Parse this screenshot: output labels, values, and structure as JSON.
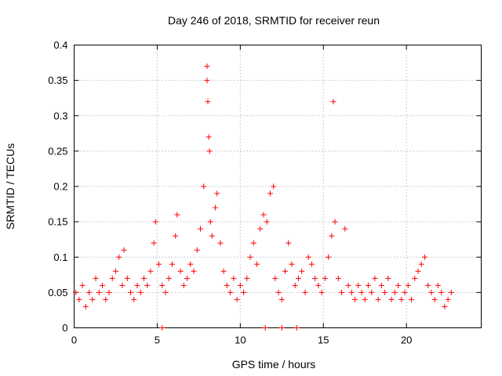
{
  "chart_data": {
    "type": "scatter",
    "title": "Day 246 of 2018, SRMTID for receiver reun",
    "xlabel": "GPS time / hours",
    "ylabel": "SRMTID / TECUs",
    "xlim": [
      0,
      24.5
    ],
    "ylim": [
      0,
      0.4
    ],
    "xticks": [
      0,
      5,
      10,
      15,
      20
    ],
    "xtick_labels": [
      "0",
      "5",
      "10",
      "15",
      "20"
    ],
    "yticks": [
      0,
      0.05,
      0.1,
      0.15,
      0.2,
      0.25,
      0.3,
      0.35,
      0.4
    ],
    "ytick_labels": [
      "0",
      "0.05",
      "0.1",
      "0.15",
      "0.2",
      "0.25",
      "0.3",
      "0.35",
      "0.4"
    ],
    "grid": true,
    "marker": "+",
    "color": "#ff0000",
    "series": [
      {
        "name": "reun",
        "x": [
          0.1,
          0.3,
          0.5,
          0.7,
          0.9,
          1.1,
          1.3,
          1.5,
          1.7,
          1.9,
          2.1,
          2.3,
          2.5,
          2.7,
          2.9,
          3.0,
          3.2,
          3.4,
          3.6,
          3.8,
          4.0,
          4.2,
          4.4,
          4.6,
          4.8,
          4.9,
          5.1,
          5.3,
          5.5,
          5.7,
          5.9,
          6.1,
          6.2,
          6.4,
          6.6,
          6.8,
          7.0,
          7.2,
          7.4,
          7.6,
          7.8,
          8.0,
          8.0,
          8.05,
          8.1,
          8.15,
          8.2,
          8.3,
          8.5,
          8.6,
          8.8,
          9.0,
          9.2,
          9.4,
          9.6,
          9.8,
          10.0,
          10.2,
          10.4,
          10.6,
          10.8,
          11.0,
          11.2,
          11.4,
          11.6,
          11.8,
          12.0,
          12.1,
          12.3,
          12.5,
          12.7,
          12.9,
          13.1,
          13.3,
          13.5,
          13.7,
          13.9,
          14.1,
          14.3,
          14.5,
          14.7,
          14.9,
          15.1,
          15.3,
          15.5,
          15.6,
          15.7,
          15.9,
          16.1,
          16.3,
          16.5,
          16.7,
          16.9,
          17.1,
          17.3,
          17.5,
          17.7,
          17.9,
          18.1,
          18.3,
          18.5,
          18.7,
          18.9,
          19.1,
          19.3,
          19.5,
          19.7,
          19.9,
          20.1,
          20.3,
          20.5,
          20.7,
          20.9,
          21.1,
          21.3,
          21.5,
          21.7,
          21.9,
          22.1,
          22.3,
          22.5,
          22.7,
          5.3,
          11.5,
          12.5,
          13.4
        ],
        "y": [
          0.05,
          0.04,
          0.06,
          0.03,
          0.05,
          0.04,
          0.07,
          0.05,
          0.06,
          0.04,
          0.05,
          0.07,
          0.08,
          0.1,
          0.06,
          0.11,
          0.07,
          0.05,
          0.04,
          0.06,
          0.05,
          0.07,
          0.06,
          0.08,
          0.12,
          0.15,
          0.09,
          0.06,
          0.05,
          0.07,
          0.09,
          0.13,
          0.16,
          0.08,
          0.06,
          0.07,
          0.09,
          0.08,
          0.11,
          0.14,
          0.2,
          0.37,
          0.35,
          0.32,
          0.27,
          0.25,
          0.15,
          0.13,
          0.17,
          0.19,
          0.12,
          0.08,
          0.06,
          0.05,
          0.07,
          0.04,
          0.06,
          0.05,
          0.07,
          0.1,
          0.12,
          0.09,
          0.14,
          0.16,
          0.15,
          0.19,
          0.2,
          0.07,
          0.05,
          0.04,
          0.08,
          0.12,
          0.09,
          0.06,
          0.07,
          0.08,
          0.05,
          0.1,
          0.09,
          0.07,
          0.06,
          0.05,
          0.07,
          0.1,
          0.13,
          0.32,
          0.15,
          0.07,
          0.05,
          0.14,
          0.06,
          0.05,
          0.04,
          0.06,
          0.05,
          0.04,
          0.06,
          0.05,
          0.07,
          0.04,
          0.06,
          0.05,
          0.07,
          0.04,
          0.05,
          0.06,
          0.04,
          0.05,
          0.06,
          0.04,
          0.07,
          0.08,
          0.09,
          0.1,
          0.06,
          0.05,
          0.04,
          0.06,
          0.05,
          0.03,
          0.04,
          0.05,
          0.0,
          0.0,
          0.0,
          0.0
        ]
      }
    ]
  }
}
